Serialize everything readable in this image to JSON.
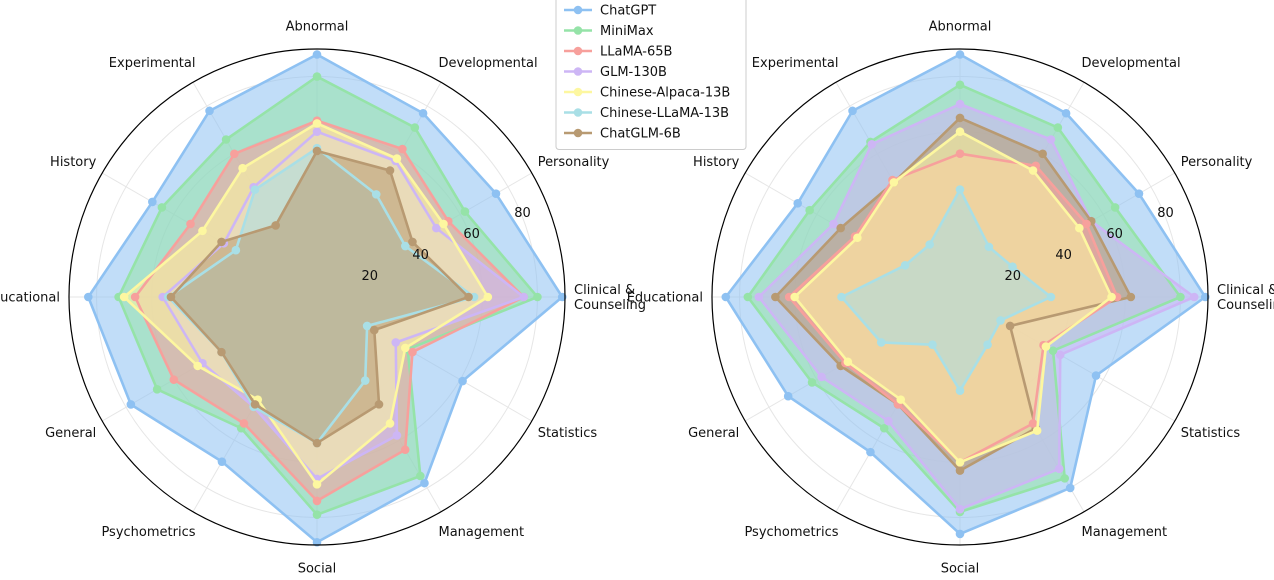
{
  "chart_data": [
    {
      "type": "radar",
      "axes": [
        "Clinical &\nCounseling",
        "Personality",
        "Developmental",
        "Abnormal",
        "Experimental",
        "History",
        "Educational",
        "General",
        "Psychometrics",
        "Social",
        "Management",
        "Statistics"
      ],
      "rlim": [
        0,
        90
      ],
      "rticks": [
        20,
        40,
        60,
        80
      ],
      "grid": true,
      "series": [
        {
          "name": "ChatGPT",
          "color": "#8ec1f2",
          "values": [
            89,
            75,
            77,
            88,
            78,
            69,
            83,
            78,
            69,
            89,
            78,
            61
          ]
        },
        {
          "name": "MiniMax",
          "color": "#95e3a8",
          "values": [
            80,
            62,
            71,
            80,
            66,
            65,
            72,
            67,
            55,
            79,
            75,
            38
          ]
        },
        {
          "name": "LLaMA-65B",
          "color": "#f7a09c",
          "values": [
            75,
            55,
            62,
            64,
            60,
            53,
            66,
            60,
            53,
            74,
            64,
            40
          ]
        },
        {
          "name": "GLM-130B",
          "color": "#cdb6f5",
          "values": [
            75,
            50,
            57,
            60,
            46,
            39,
            56,
            48,
            46,
            66,
            58,
            33
          ]
        },
        {
          "name": "Chinese-Alpaca-13B",
          "color": "#fdf7a0",
          "values": [
            62,
            53,
            58,
            63,
            54,
            48,
            70,
            50,
            43,
            68,
            53,
            37
          ]
        },
        {
          "name": "Chinese-LLaMA-13B",
          "color": "#a9dfe6",
          "values": [
            57,
            37,
            43,
            54,
            45,
            34,
            54,
            40,
            46,
            53,
            35,
            21
          ]
        },
        {
          "name": "ChatGLM-6B",
          "color": "#b89a72",
          "values": [
            55,
            40,
            53,
            53,
            30,
            40,
            53,
            40,
            45,
            53,
            45,
            24
          ]
        }
      ]
    },
    {
      "type": "radar",
      "axes": [
        "Clinical &\nCounseling",
        "Personality",
        "Developmental",
        "Abnormal",
        "Experimental",
        "History",
        "Educational",
        "General",
        "Psychometrics",
        "Social",
        "Management",
        "Statistics"
      ],
      "rlim": [
        0,
        90
      ],
      "rticks": [
        20,
        40,
        60,
        80
      ],
      "grid": true,
      "series": [
        {
          "name": "ChatGPT",
          "color": "#8ec1f2",
          "values": [
            89,
            75,
            77,
            88,
            78,
            68,
            85,
            72,
            65,
            86,
            80,
            57
          ]
        },
        {
          "name": "MiniMax",
          "color": "#95e3a8",
          "values": [
            80,
            65,
            71,
            77,
            65,
            63,
            77,
            62,
            55,
            78,
            76,
            39
          ]
        },
        {
          "name": "GLM-130B",
          "color": "#cdb6f5",
          "values": [
            85,
            55,
            66,
            70,
            64,
            53,
            73,
            58,
            52,
            77,
            72,
            42
          ]
        },
        {
          "name": "ChatGLM-6B",
          "color": "#b89a72",
          "values": [
            62,
            55,
            60,
            65,
            48,
            50,
            67,
            50,
            45,
            63,
            55,
            21
          ]
        },
        {
          "name": "LLaMA-65B",
          "color": "#f7a09c",
          "values": [
            57,
            53,
            55,
            52,
            49,
            44,
            62,
            48,
            45,
            60,
            53,
            35
          ]
        },
        {
          "name": "Chinese-Alpaca-13B",
          "color": "#fdf7a0",
          "values": [
            55,
            50,
            53,
            60,
            48,
            43,
            60,
            47,
            43,
            60,
            56,
            36
          ]
        },
        {
          "name": "Chinese-LLaMA-13B",
          "color": "#a9dfe6",
          "values": [
            33,
            22,
            21,
            39,
            22,
            23,
            43,
            33,
            20,
            34,
            20,
            17
          ]
        }
      ]
    }
  ],
  "legend": {
    "placement": "top-center",
    "entries": [
      {
        "name": "ChatGPT",
        "color": "#8ec1f2"
      },
      {
        "name": "MiniMax",
        "color": "#95e3a8"
      },
      {
        "name": "LLaMA-65B",
        "color": "#f7a09c"
      },
      {
        "name": "GLM-130B",
        "color": "#cdb6f5"
      },
      {
        "name": "Chinese-Alpaca-13B",
        "color": "#fdf7a0"
      },
      {
        "name": "Chinese-LLaMA-13B",
        "color": "#a9dfe6"
      },
      {
        "name": "ChatGLM-6B",
        "color": "#b89a72"
      }
    ]
  }
}
